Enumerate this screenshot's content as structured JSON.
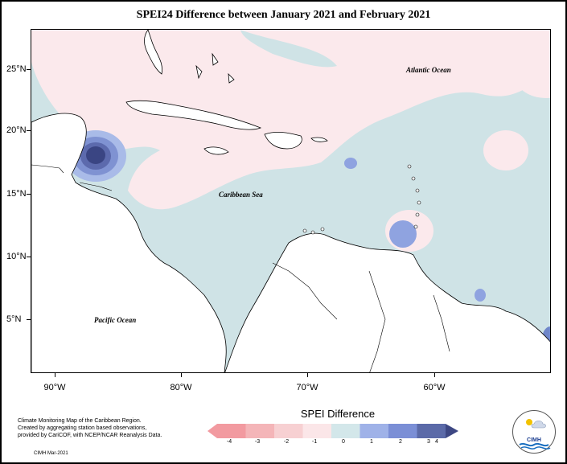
{
  "title": "SPEI24 Difference between January 2021 and February 2021",
  "map": {
    "lat_labels": [
      "25°N",
      "20°N",
      "15°N",
      "10°N",
      "5°N"
    ],
    "lon_labels": [
      "90°W",
      "80°W",
      "70°W",
      "60°W"
    ],
    "labels": {
      "atlantic": "Atlantic Ocean",
      "caribbean": "Caribbean Sea",
      "pacific": "Pacific Ocean"
    },
    "colors": {
      "neutral_pos": "#cfe3e6",
      "neutral_neg": "#fbe9ec",
      "blue_1": "#8fa7e0",
      "blue_2": "#6f86c9",
      "blue_3": "#4f5f9e",
      "blue_4": "#2f3a7a"
    }
  },
  "legend": {
    "title": "SPEI Difference",
    "ticks": [
      "-4",
      "-3",
      "-2",
      "-1",
      "0",
      "1",
      "2",
      "3",
      "4"
    ],
    "colors": [
      "#f29aa0",
      "#f4b5b8",
      "#f7d0d2",
      "#fbe6e8",
      "#d3e7ea",
      "#9fb2e8",
      "#7b8fd6",
      "#5b6aa8",
      "#3d4783"
    ]
  },
  "credits": {
    "line1": "Climate Monitoring Map of the Caribbean Region.",
    "line2": "Created by aggregating station based observations,",
    "line3": "provided by CariCOF, with NCEP/NCAR Reanalysis Data.",
    "line4": "CIMH Mar-2021"
  },
  "logo": {
    "text": "CIMH"
  }
}
